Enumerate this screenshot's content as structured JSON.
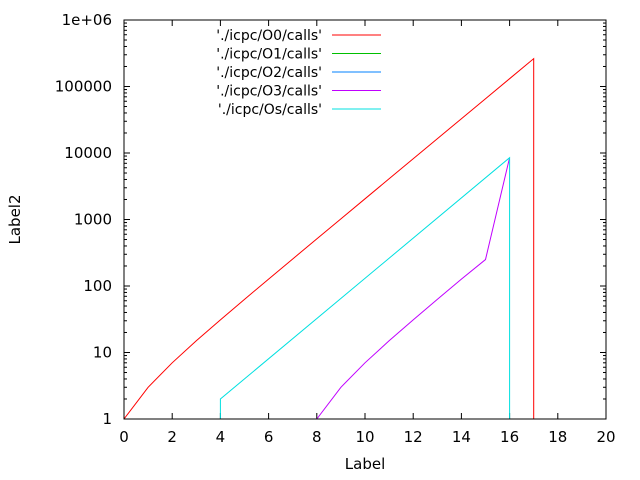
{
  "chart_data": {
    "type": "line",
    "xlabel": "Label",
    "ylabel": "Label2",
    "xlim": [
      0,
      20
    ],
    "ylim": [
      1,
      1000000
    ],
    "yscale": "log",
    "grid": false,
    "legend_position": "top-left",
    "x_ticks": [
      "0",
      "2",
      "4",
      "6",
      "8",
      "10",
      "12",
      "14",
      "16",
      "18",
      "20"
    ],
    "y_ticks": [
      "1",
      "10",
      "100",
      "1000",
      "10000",
      "100000",
      "1e+06"
    ],
    "series": [
      {
        "name": "'./icpc/O0/calls'",
        "color": "#ff0000",
        "points": [
          [
            0,
            1
          ],
          [
            1,
            3
          ],
          [
            2,
            7
          ],
          [
            3,
            15
          ],
          [
            4,
            31
          ],
          [
            5,
            63
          ],
          [
            6,
            127
          ],
          [
            7,
            255
          ],
          [
            8,
            511
          ],
          [
            9,
            1023
          ],
          [
            10,
            2047
          ],
          [
            11,
            4095
          ],
          [
            12,
            8191
          ],
          [
            13,
            16383
          ],
          [
            14,
            32767
          ],
          [
            15,
            65535
          ],
          [
            16,
            131071
          ],
          [
            17,
            262143
          ],
          [
            17,
            1
          ]
        ]
      },
      {
        "name": "'./icpc/O1/calls'",
        "color": "#00c000",
        "points": []
      },
      {
        "name": "'./icpc/O2/calls'",
        "color": "#0080ff",
        "points": []
      },
      {
        "name": "'./icpc/O3/calls'",
        "color": "#c000ff",
        "points": [
          [
            8,
            1
          ],
          [
            9,
            3
          ],
          [
            10,
            7
          ],
          [
            11,
            15
          ],
          [
            12,
            31
          ],
          [
            13,
            63
          ],
          [
            14,
            127
          ],
          [
            15,
            250
          ],
          [
            16,
            8500
          ]
        ]
      },
      {
        "name": "'./icpc/Os/calls'",
        "color": "#00e0e0",
        "points": [
          [
            4,
            1
          ],
          [
            4,
            2
          ],
          [
            16,
            8500
          ],
          [
            16,
            1
          ]
        ]
      }
    ]
  }
}
